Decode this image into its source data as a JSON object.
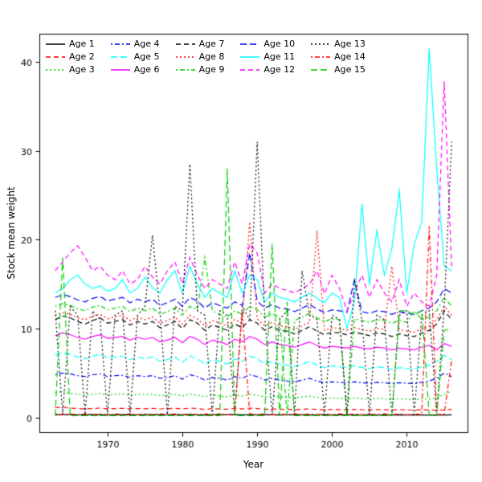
{
  "figure": {
    "background": "#ffffff",
    "box_color": "#000000"
  },
  "chart_data": {
    "type": "line",
    "title": "",
    "xlabel": "Year",
    "ylabel": "Stock mean weight",
    "xlim": [
      1963,
      2016
    ],
    "ylim": [
      0,
      41.5
    ],
    "xticks": [
      1970,
      1980,
      1990,
      2000,
      2010
    ],
    "yticks": [
      0,
      10,
      20,
      30,
      40
    ],
    "grid": false,
    "legend_position": "top-left-inside",
    "x": [
      1963,
      1964,
      1965,
      1966,
      1967,
      1968,
      1969,
      1970,
      1971,
      1972,
      1973,
      1974,
      1975,
      1976,
      1977,
      1978,
      1979,
      1980,
      1981,
      1982,
      1983,
      1984,
      1985,
      1986,
      1987,
      1988,
      1989,
      1990,
      1991,
      1992,
      1993,
      1994,
      1995,
      1996,
      1997,
      1998,
      1999,
      2000,
      2001,
      2002,
      2003,
      2004,
      2005,
      2006,
      2007,
      2008,
      2009,
      2010,
      2011,
      2012,
      2013,
      2014,
      2015,
      2016
    ],
    "series": [
      {
        "name": "Age 1",
        "color": "#000000",
        "linetype": "solid",
        "values": [
          0.3,
          0.32,
          0.31,
          0.3,
          0.29,
          0.31,
          0.3,
          0.28,
          0.3,
          0.31,
          0.29,
          0.3,
          0.3,
          0.31,
          0.29,
          0.3,
          0.3,
          0.29,
          0.31,
          0.3,
          0.28,
          0.3,
          0.29,
          0.3,
          0.31,
          0.29,
          0.3,
          0.3,
          0.29,
          0.3,
          0.28,
          0.29,
          0.3,
          0.29,
          0.28,
          0.3,
          0.29,
          0.28,
          0.29,
          0.3,
          0.28,
          0.27,
          0.29,
          0.28,
          0.27,
          0.28,
          0.29,
          0.27,
          0.28,
          0.27,
          0.28,
          0.27,
          0.28,
          0.3
        ]
      },
      {
        "name": "Age 2",
        "color": "#ff0000",
        "linetype": "dashed",
        "values": [
          1.1,
          1.15,
          1.05,
          1.0,
          0.95,
          1.0,
          1.05,
          0.98,
          1.0,
          1.02,
          0.97,
          1.0,
          0.98,
          1.03,
          0.96,
          1.0,
          1.02,
          0.95,
          1.05,
          1.0,
          0.9,
          1.0,
          0.95,
          0.92,
          1.0,
          0.95,
          1.05,
          1.0,
          0.9,
          0.95,
          0.92,
          0.9,
          0.88,
          0.92,
          0.95,
          0.9,
          0.85,
          0.9,
          0.88,
          0.85,
          0.9,
          0.87,
          0.84,
          0.88,
          0.86,
          0.83,
          0.87,
          0.85,
          0.82,
          0.86,
          0.84,
          0.82,
          0.85,
          0.9
        ]
      },
      {
        "name": "Age 3",
        "color": "#00cd00",
        "linetype": "dotted",
        "values": [
          2.8,
          2.9,
          2.7,
          2.6,
          2.5,
          2.6,
          2.7,
          2.5,
          2.6,
          2.65,
          2.5,
          2.6,
          2.55,
          2.6,
          2.45,
          2.5,
          2.6,
          2.4,
          2.65,
          2.5,
          2.35,
          2.5,
          2.4,
          2.3,
          2.5,
          2.4,
          2.6,
          2.5,
          2.3,
          2.4,
          2.3,
          2.25,
          2.2,
          2.3,
          2.4,
          2.25,
          2.1,
          2.2,
          2.15,
          2.1,
          2.2,
          2.1,
          2.05,
          2.15,
          2.1,
          2.0,
          2.1,
          2.05,
          2.0,
          2.1,
          2.05,
          2.2,
          2.6,
          3.0
        ]
      },
      {
        "name": "Age 4",
        "color": "#0000ff",
        "linetype": "dotdash",
        "values": [
          4.8,
          5.0,
          4.9,
          4.7,
          4.6,
          4.8,
          4.9,
          4.6,
          4.7,
          4.75,
          4.5,
          4.7,
          4.6,
          4.7,
          4.4,
          4.5,
          4.7,
          4.3,
          4.8,
          4.6,
          4.2,
          4.5,
          4.4,
          4.2,
          4.6,
          4.4,
          4.8,
          4.6,
          4.2,
          4.4,
          4.2,
          4.1,
          4.0,
          4.2,
          4.4,
          4.1,
          3.9,
          4.0,
          3.95,
          3.9,
          4.0,
          3.9,
          3.85,
          3.95,
          3.9,
          3.8,
          3.9,
          3.85,
          3.8,
          3.95,
          4.1,
          4.4,
          5.0,
          4.6
        ]
      },
      {
        "name": "Age 5",
        "color": "#00ffff",
        "linetype": "longdash",
        "values": [
          7.0,
          7.3,
          7.1,
          6.8,
          6.6,
          6.9,
          7.1,
          6.7,
          6.8,
          6.9,
          6.5,
          6.8,
          6.6,
          6.8,
          6.3,
          6.5,
          6.8,
          6.2,
          6.9,
          6.6,
          6.0,
          6.5,
          6.3,
          6.0,
          6.6,
          6.3,
          6.9,
          6.6,
          6.0,
          6.3,
          6.0,
          5.9,
          5.7,
          6.0,
          6.3,
          5.9,
          5.6,
          5.8,
          5.7,
          5.6,
          5.8,
          5.6,
          5.5,
          5.7,
          5.6,
          5.4,
          5.6,
          5.5,
          5.4,
          5.7,
          5.9,
          6.3,
          7.0,
          6.5
        ]
      },
      {
        "name": "Age 6",
        "color": "#ff00ff",
        "linetype": "solid",
        "values": [
          9.2,
          9.5,
          9.3,
          9.0,
          8.8,
          9.1,
          9.3,
          8.9,
          9.0,
          9.1,
          8.7,
          9.0,
          8.8,
          9.0,
          8.5,
          8.7,
          9.0,
          8.4,
          9.1,
          8.8,
          8.2,
          8.7,
          8.5,
          8.2,
          8.8,
          8.5,
          9.1,
          8.8,
          8.2,
          8.5,
          8.2,
          8.1,
          7.9,
          8.2,
          8.5,
          8.1,
          7.8,
          8.0,
          7.9,
          7.8,
          8.0,
          7.8,
          7.7,
          7.9,
          7.8,
          7.6,
          7.8,
          7.7,
          7.6,
          7.9,
          8.1,
          7.6,
          8.3,
          8.0
        ]
      },
      {
        "name": "Age 7",
        "color": "#000000",
        "linetype": "dashed",
        "values": [
          11.0,
          11.4,
          11.2,
          10.8,
          10.5,
          10.9,
          11.2,
          10.6,
          10.8,
          11.0,
          10.4,
          10.8,
          10.5,
          10.8,
          10.1,
          10.4,
          10.8,
          10.0,
          11.0,
          10.6,
          9.8,
          10.4,
          10.1,
          9.8,
          10.5,
          10.1,
          11.0,
          10.6,
          9.8,
          10.2,
          9.8,
          9.7,
          9.4,
          9.8,
          10.2,
          9.7,
          9.3,
          9.6,
          9.5,
          9.3,
          9.6,
          9.4,
          9.2,
          9.5,
          9.4,
          9.1,
          9.4,
          9.2,
          9.1,
          9.5,
          9.8,
          10.5,
          12.0,
          11.0
        ]
      },
      {
        "name": "Age 8",
        "color": "#ff0000",
        "linetype": "dotted",
        "values": [
          11.5,
          11.8,
          11.6,
          11.2,
          11.0,
          11.4,
          11.6,
          11.1,
          11.3,
          11.5,
          10.9,
          11.3,
          11.0,
          11.3,
          10.6,
          10.9,
          11.3,
          10.5,
          11.5,
          11.1,
          10.3,
          10.9,
          10.6,
          10.3,
          11.0,
          10.6,
          22.0,
          11.1,
          10.3,
          10.7,
          10.3,
          10.2,
          9.9,
          10.3,
          10.7,
          21.0,
          9.8,
          10.1,
          10.0,
          9.8,
          10.1,
          9.9,
          9.7,
          10.0,
          9.9,
          17.0,
          9.9,
          9.7,
          9.6,
          10.0,
          10.3,
          11.0,
          12.5,
          11.5
        ]
      },
      {
        "name": "Age 9",
        "color": "#00cd00",
        "linetype": "dotdash",
        "values": [
          12.5,
          12.8,
          12.6,
          12.2,
          12.0,
          12.4,
          12.6,
          12.1,
          12.3,
          12.5,
          11.9,
          12.3,
          12.0,
          12.3,
          11.6,
          11.9,
          12.3,
          11.5,
          12.5,
          12.1,
          18.0,
          12.0,
          11.6,
          11.3,
          12.0,
          11.6,
          12.5,
          12.1,
          11.3,
          11.7,
          11.3,
          0.2,
          10.9,
          11.3,
          11.7,
          11.2,
          10.8,
          11.1,
          11.0,
          0.2,
          11.1,
          10.9,
          10.7,
          11.0,
          10.9,
          10.6,
          10.9,
          10.7,
          12.0,
          11.0,
          11.3,
          12.0,
          13.5,
          12.5
        ]
      },
      {
        "name": "Age 10",
        "color": "#0000ff",
        "linetype": "longdash",
        "values": [
          13.5,
          13.8,
          13.6,
          13.2,
          13.0,
          13.4,
          13.6,
          13.1,
          13.3,
          13.5,
          12.9,
          13.3,
          13.0,
          13.3,
          12.6,
          12.9,
          13.3,
          12.5,
          13.5,
          13.1,
          12.3,
          12.9,
          12.6,
          12.3,
          13.0,
          12.6,
          18.5,
          13.1,
          12.3,
          12.7,
          12.3,
          12.2,
          11.9,
          12.3,
          12.7,
          12.2,
          11.8,
          12.1,
          12.0,
          11.8,
          15.5,
          11.9,
          11.7,
          12.0,
          11.9,
          11.6,
          11.9,
          11.7,
          11.6,
          12.0,
          12.3,
          13.0,
          14.5,
          14.0
        ]
      },
      {
        "name": "Age 11",
        "color": "#00ffff",
        "linetype": "solid",
        "values": [
          14.0,
          14.5,
          15.5,
          16.0,
          15.0,
          14.5,
          14.8,
          14.2,
          14.5,
          15.5,
          14.0,
          14.5,
          15.8,
          14.6,
          14.0,
          15.5,
          16.5,
          14.0,
          17.0,
          15.0,
          13.5,
          14.5,
          14.0,
          13.5,
          16.5,
          14.0,
          16.0,
          15.5,
          13.0,
          14.0,
          13.5,
          13.3,
          13.0,
          13.5,
          14.0,
          13.4,
          12.9,
          14.0,
          13.5,
          10.0,
          13.0,
          24.0,
          15.0,
          21.0,
          16.0,
          19.0,
          25.5,
          14.0,
          19.5,
          22.0,
          41.5,
          28.0,
          17.0,
          16.5
        ]
      },
      {
        "name": "Age 12",
        "color": "#ff00ff",
        "linetype": "dashed",
        "values": [
          16.5,
          17.5,
          18.5,
          19.3,
          18.0,
          16.5,
          17.0,
          16.0,
          15.5,
          16.5,
          15.0,
          15.5,
          17.0,
          15.8,
          15.0,
          16.5,
          17.5,
          15.0,
          18.0,
          16.0,
          14.5,
          15.5,
          15.0,
          14.5,
          17.5,
          15.0,
          19.5,
          18.5,
          14.0,
          15.0,
          14.5,
          14.3,
          14.0,
          14.5,
          15.0,
          16.5,
          13.9,
          16.0,
          14.5,
          12.0,
          14.0,
          16.0,
          13.5,
          15.5,
          14.0,
          13.0,
          15.5,
          12.5,
          14.0,
          13.0,
          12.5,
          16.0,
          37.8,
          17.0
        ]
      },
      {
        "name": "Age 13",
        "color": "#000000",
        "linetype": "dotted",
        "values": [
          12.0,
          0.3,
          12.5,
          11.5,
          0.3,
          12.0,
          11.0,
          0.3,
          11.5,
          12.0,
          0.3,
          11.5,
          12.5,
          20.5,
          12.0,
          0.3,
          12.5,
          12.0,
          28.5,
          12.0,
          11.5,
          0.3,
          12.0,
          11.5,
          0.3,
          12.5,
          11.0,
          31.0,
          11.5,
          0.3,
          11.0,
          12.0,
          0.3,
          16.5,
          11.5,
          11.0,
          0.3,
          11.5,
          11.0,
          0.3,
          15.5,
          11.0,
          0.3,
          11.5,
          11.0,
          0.3,
          11.5,
          12.0,
          0.3,
          11.5,
          12.0,
          0.3,
          12.5,
          31.0
        ]
      },
      {
        "name": "Age 14",
        "color": "#ff0000",
        "linetype": "dotdash",
        "values": [
          0.4,
          0.3,
          0.4,
          0.3,
          0.4,
          0.3,
          0.4,
          0.3,
          0.4,
          0.3,
          0.4,
          0.3,
          0.4,
          0.3,
          0.4,
          0.3,
          0.4,
          0.3,
          0.4,
          0.3,
          0.4,
          0.3,
          0.4,
          0.3,
          0.4,
          12.0,
          0.4,
          0.3,
          0.4,
          0.3,
          0.4,
          0.3,
          0.4,
          0.3,
          0.4,
          0.3,
          0.4,
          0.3,
          0.4,
          0.3,
          0.4,
          0.3,
          0.4,
          0.3,
          0.4,
          0.3,
          0.4,
          0.3,
          0.4,
          0.3,
          21.5,
          0.3,
          0.4,
          6.5
        ]
      },
      {
        "name": "Age 15",
        "color": "#00cd00",
        "linetype": "longdash",
        "values": [
          0.2,
          18.0,
          0.2,
          0.2,
          0.2,
          0.2,
          0.2,
          0.2,
          0.2,
          0.2,
          0.2,
          0.2,
          0.2,
          0.2,
          0.2,
          0.2,
          0.2,
          0.2,
          0.2,
          0.2,
          0.2,
          0.2,
          0.2,
          28.0,
          0.2,
          0.2,
          0.2,
          0.2,
          0.2,
          19.5,
          0.2,
          13.0,
          0.2,
          0.2,
          0.2,
          0.2,
          0.2,
          0.2,
          0.2,
          0.2,
          0.2,
          0.2,
          0.2,
          0.2,
          0.2,
          0.2,
          12.0,
          12.0,
          11.5,
          12.0,
          0.2,
          0.2,
          9.8,
          10.0
        ]
      }
    ]
  }
}
